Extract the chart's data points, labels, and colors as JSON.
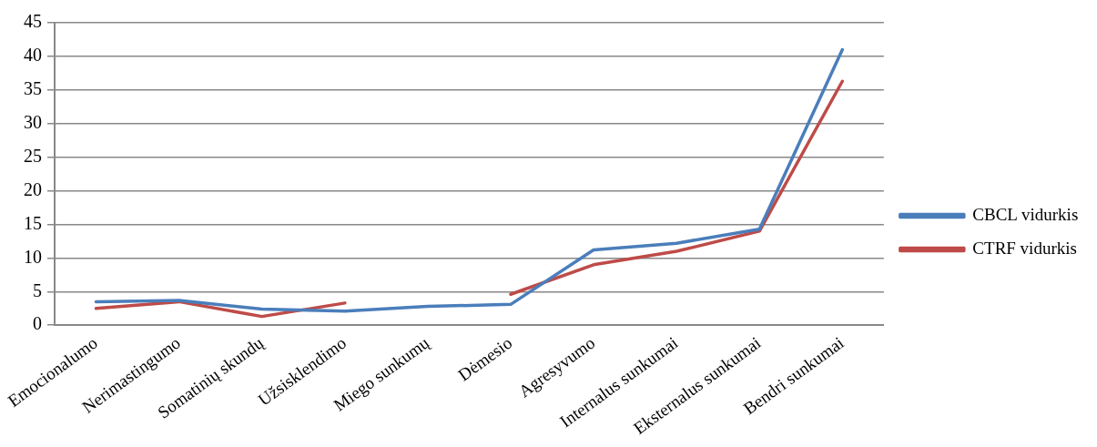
{
  "chart_data": {
    "type": "line",
    "categories": [
      "Emocionalumo",
      "Nerimastingumo",
      "Somatinių skundų",
      "Užsisklendimo",
      "Miego sunkumų",
      "Dėmesio",
      "Agresyvumo",
      "Internalus sunkumai",
      "Eksternalus sunkumai",
      "Bendri sunkumai"
    ],
    "series": [
      {
        "name": "CBCL vidurkis",
        "color": "#4a7ebb",
        "values": [
          3.5,
          3.7,
          2.4,
          2.1,
          2.8,
          3.1,
          11.2,
          12.2,
          14.3,
          41
        ]
      },
      {
        "name": "CTRF vidurkis",
        "color": "#be4b48",
        "values": [
          2.5,
          3.5,
          1.3,
          3.3,
          null,
          4.6,
          9.0,
          11.0,
          14.0,
          36.3
        ]
      }
    ],
    "ylim": [
      0,
      45
    ],
    "yticks": [
      0,
      5,
      10,
      15,
      20,
      25,
      30,
      35,
      40,
      45
    ],
    "grid": "y",
    "legend": "right",
    "marker": "none"
  }
}
